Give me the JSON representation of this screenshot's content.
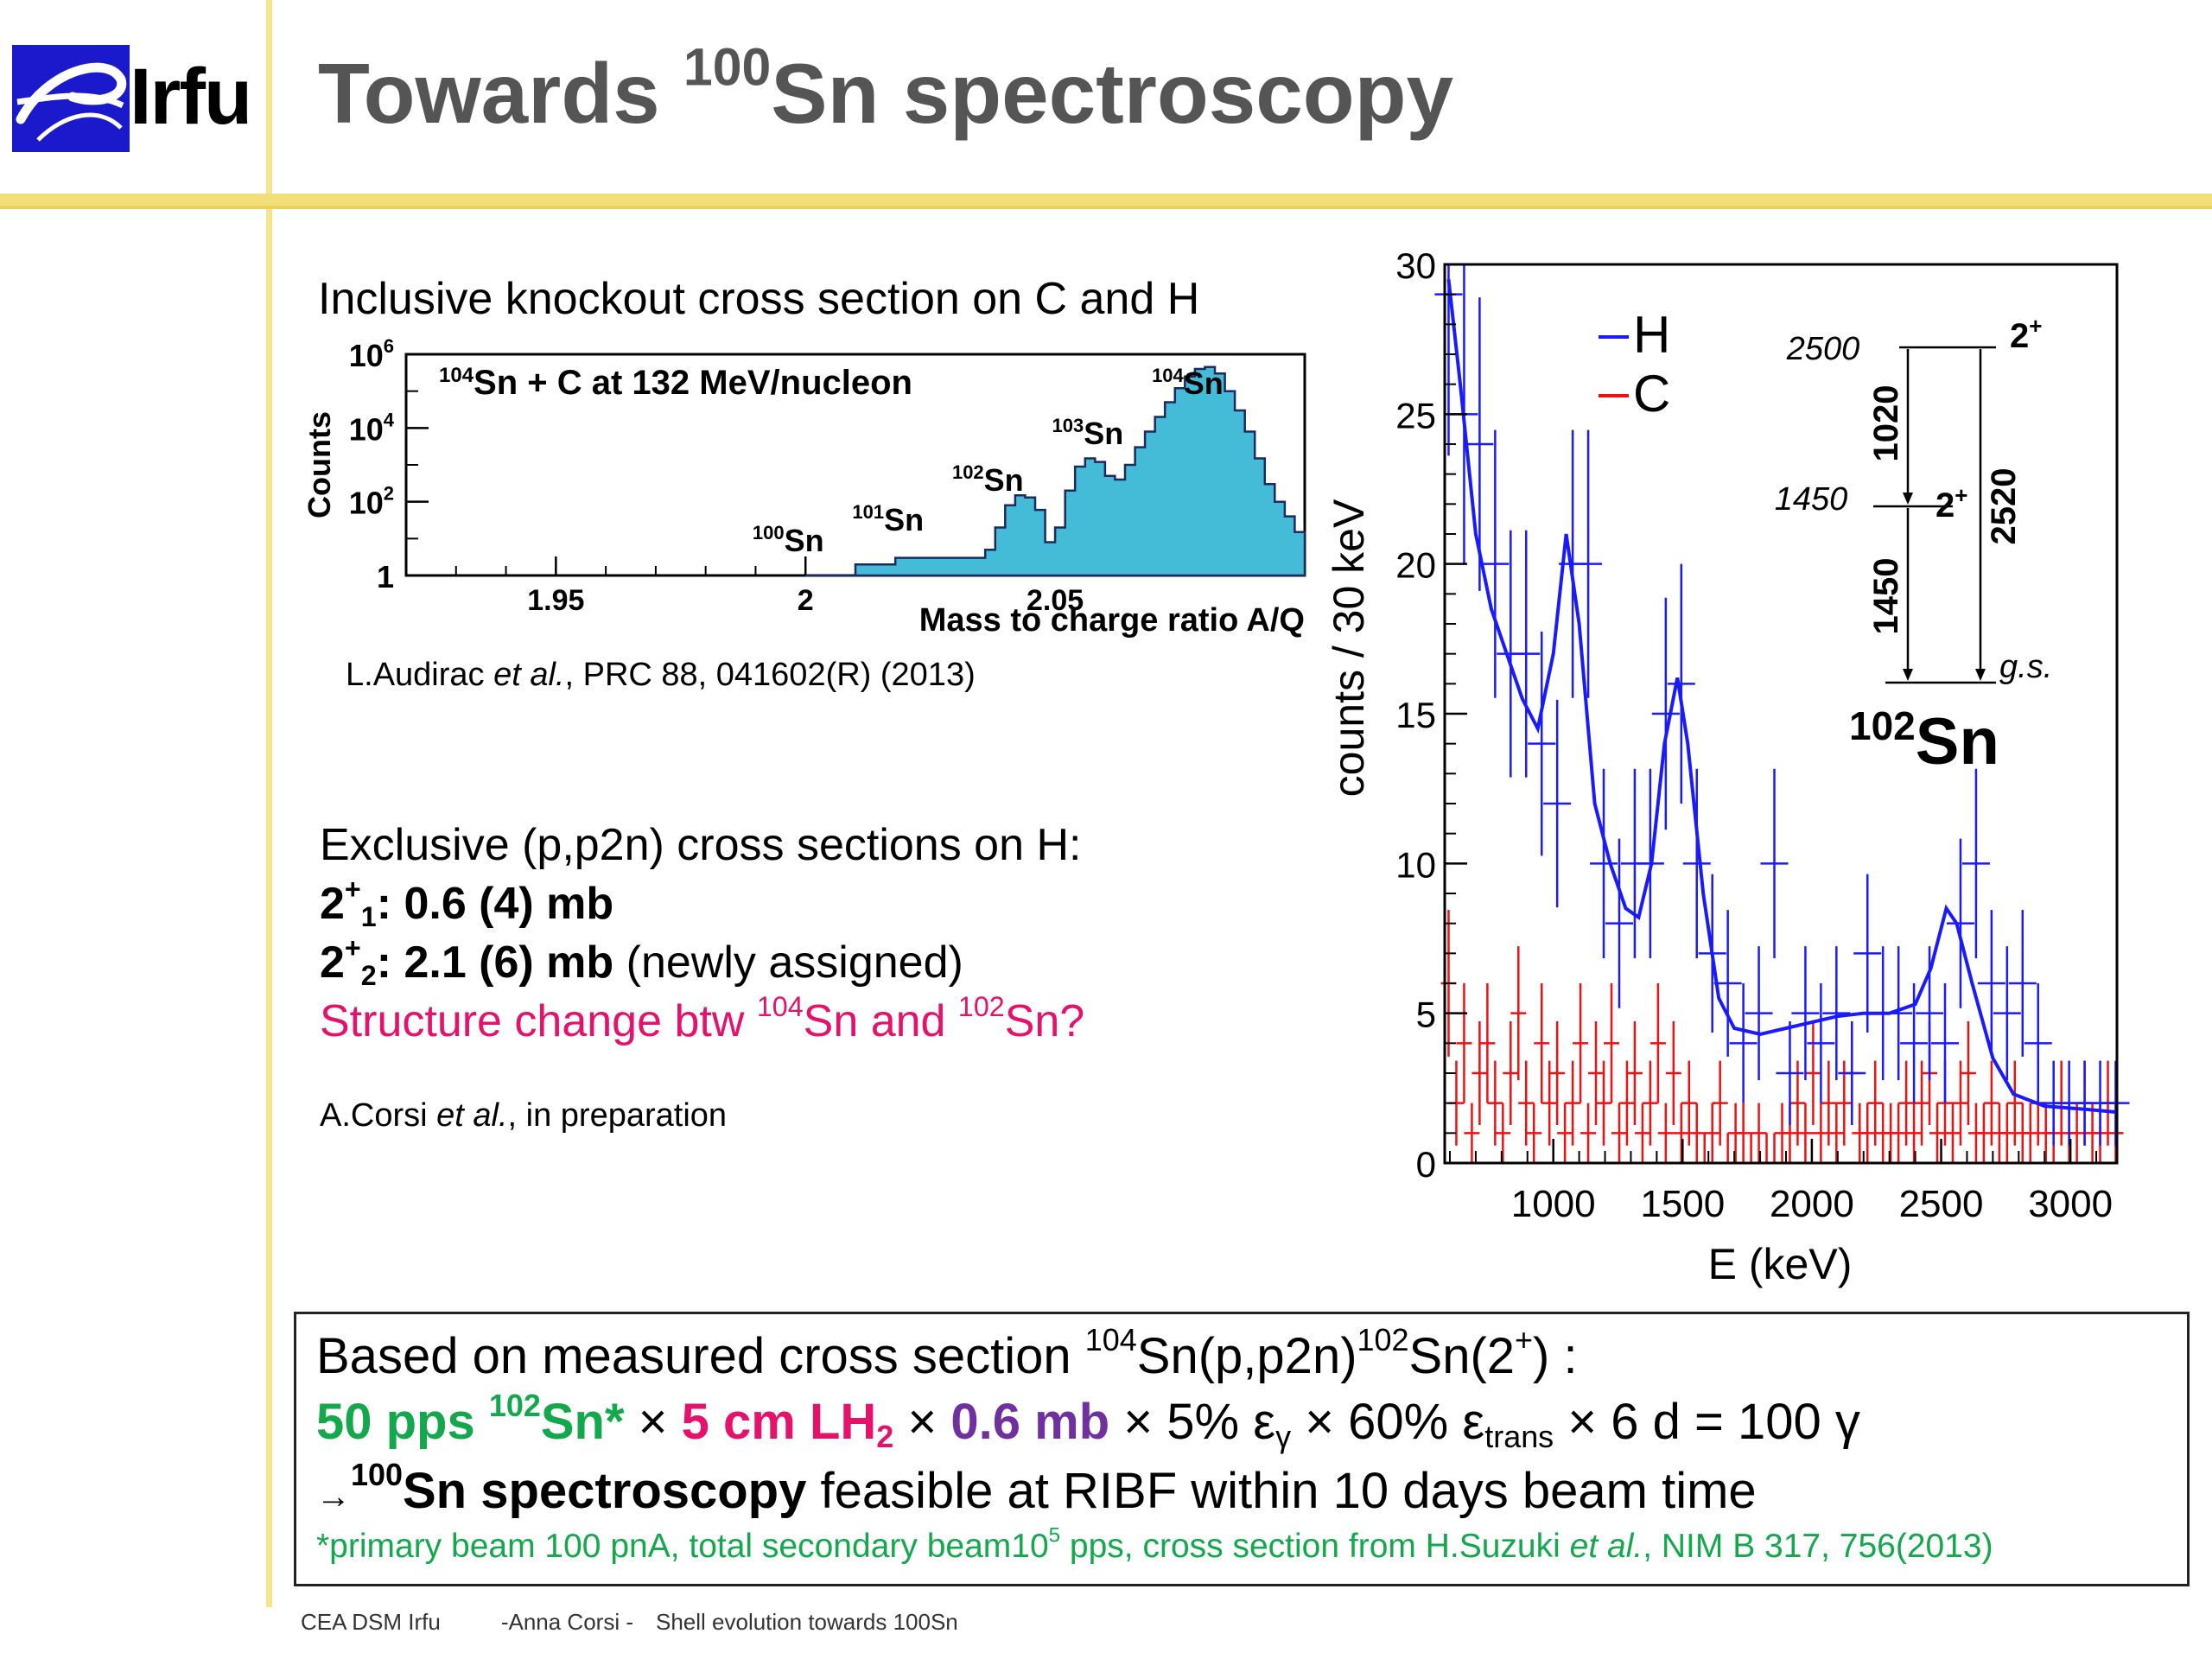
{
  "header": {
    "logo_text": "Irfu",
    "title_pre": "Towards ",
    "title_sup": "100",
    "title_post": "Sn spectroscopy"
  },
  "inclusive": {
    "heading": "Inclusive knockout cross section on C and H",
    "citation_author": "L.Audirac ",
    "citation_etal": "et al.",
    "citation_rest": ", PRC 88, 041602(R) (2013)"
  },
  "exclusive": {
    "heading": "Exclusive (p,p2n) cross sections on H:",
    "line1_a": "2",
    "line1_sup": "+",
    "line1_sub": "1",
    "line1_val": ": 0.6 (4) mb",
    "line2_a": "2",
    "line2_sup": "+",
    "line2_sub": "2",
    "line2_val": ": 2.1 (6) mb",
    "line2_note": " (newly assigned)",
    "question_a": "Structure change btw ",
    "question_sup1": "104",
    "question_b": "Sn and ",
    "question_sup2": "102",
    "question_c": "Sn?",
    "citation_author": "A.Corsi ",
    "citation_etal": "et al.",
    "citation_rest": ", in preparation"
  },
  "summary": {
    "line1_a": "Based on measured cross section ",
    "line1_sup1": "104",
    "line1_b": "Sn(p,p2n)",
    "line1_sup2": "102",
    "line1_c": "Sn(2",
    "line1_sup3": "+",
    "line1_d": ") :",
    "rate_a": "50 pps ",
    "rate_sup": "102",
    "rate_b": "Sn*",
    "times": " × ",
    "target_a": "5 cm LH",
    "target_sub": "2",
    "xsec": "0.6 mb",
    "eff_a": "5% ε",
    "eff_sub": "γ",
    "trans_a": "60% ε",
    "trans_sub": "trans",
    "result": "6 d = 100 γ",
    "line3_arrow": "→",
    "line3_sup": "100",
    "line3_bold": "Sn spectroscopy",
    "line3_rest": " feasible at RIBF within 10 days beam time",
    "note_a": "*primary beam 100 pnA, total  secondary beam10",
    "note_sup": "5",
    "note_b": " pps, cross section from H.Suzuki ",
    "note_etal": "et al.",
    "note_c": ", NIM B 317, 756(2013)"
  },
  "footer": {
    "org": "CEA DSM Irfu",
    "author": "-Anna Corsi -",
    "talk": "Shell evolution towards 100Sn"
  },
  "colors": {
    "accent_yellow": "#f2df7a",
    "title_gray": "#555555",
    "hist_fill": "#44bcd8",
    "series_H": "#1a1aff",
    "series_C": "#ee1111",
    "pink": "#e6116b",
    "green": "#13a84c",
    "purple": "#7030a0"
  },
  "chart_data": [
    {
      "type": "area",
      "title": "",
      "inside_label": {
        "pre": "",
        "sup": "104",
        "post": "Sn + C at 132 MeV/nucleon"
      },
      "xlabel": "Mass to charge ratio A/Q",
      "ylabel": "Counts",
      "xlim": [
        1.92,
        2.1
      ],
      "ylim": [
        1,
        1000000
      ],
      "yscale": "log",
      "x_ticks": [
        "1.95",
        "2",
        "2.05"
      ],
      "y_ticks": [
        {
          "base": "1",
          "exp": ""
        },
        {
          "base": "10",
          "exp": "2"
        },
        {
          "base": "10",
          "exp": "4"
        },
        {
          "base": "10",
          "exp": "6"
        }
      ],
      "peak_labels": [
        {
          "sup": "100",
          "text": "Sn",
          "x": 2.0
        },
        {
          "sup": "101",
          "text": "Sn",
          "x": 2.02
        },
        {
          "sup": "102",
          "text": "Sn",
          "x": 2.04
        },
        {
          "sup": "103",
          "text": "Sn",
          "x": 2.06
        },
        {
          "sup": "104",
          "text": "Sn",
          "x": 2.08
        }
      ],
      "x": [
        2.0,
        2.01,
        2.018,
        2.022,
        2.026,
        2.03,
        2.034,
        2.036,
        2.038,
        2.04,
        2.042,
        2.044,
        2.046,
        2.048,
        2.05,
        2.052,
        2.054,
        2.056,
        2.058,
        2.06,
        2.062,
        2.064,
        2.066,
        2.068,
        2.07,
        2.072,
        2.074,
        2.076,
        2.078,
        2.08,
        2.082,
        2.084,
        2.086,
        2.088,
        2.09,
        2.092,
        2.094,
        2.096,
        2.098,
        2.1
      ],
      "y": [
        1,
        2,
        3,
        3,
        3,
        3,
        3,
        5,
        20,
        80,
        150,
        130,
        60,
        8,
        20,
        200,
        900,
        1500,
        1200,
        500,
        400,
        1000,
        3000,
        8000,
        20000,
        50000,
        120000,
        250000,
        400000,
        450000,
        300000,
        100000,
        30000,
        8000,
        1500,
        300,
        100,
        40,
        15,
        8
      ]
    },
    {
      "type": "scatter",
      "title": "",
      "xlabel": "E (keV)",
      "ylabel": "counts / 30 keV",
      "xlim": [
        580,
        3180
      ],
      "ylim": [
        0,
        30
      ],
      "x_ticks": [
        1000,
        1500,
        2000,
        2500,
        3000
      ],
      "y_ticks": [
        0,
        5,
        10,
        15,
        20,
        25,
        30
      ],
      "legend": {
        "placement": "top-center",
        "entries": [
          "H",
          "C"
        ]
      },
      "series": [
        {
          "name": "H",
          "x": [
            595,
            655,
            715,
            775,
            835,
            895,
            955,
            1015,
            1075,
            1135,
            1195,
            1255,
            1315,
            1375,
            1435,
            1495,
            1555,
            1615,
            1675,
            1735,
            1795,
            1855,
            1915,
            1975,
            2035,
            2095,
            2155,
            2215,
            2275,
            2335,
            2395,
            2455,
            2515,
            2575,
            2635,
            2695,
            2755,
            2815,
            2875,
            2935,
            2995,
            3055,
            3115,
            3175
          ],
          "y": [
            29,
            25,
            24,
            20,
            17,
            17,
            14,
            12,
            20,
            20,
            10,
            8,
            10,
            10,
            15,
            16,
            10,
            7,
            6,
            4,
            5,
            10,
            3,
            5,
            4,
            5,
            3,
            7,
            5,
            5,
            4,
            5,
            4,
            8,
            10,
            6,
            5,
            6,
            4,
            2,
            2,
            2,
            2,
            2
          ],
          "fit": [
            [
              595,
              29.5
            ],
            [
              640,
              26
            ],
            [
              700,
              21
            ],
            [
              760,
              18.5
            ],
            [
              820,
              17
            ],
            [
              880,
              15.5
            ],
            [
              940,
              14.5
            ],
            [
              1000,
              17
            ],
            [
              1050,
              21
            ],
            [
              1100,
              18
            ],
            [
              1160,
              12
            ],
            [
              1220,
              10
            ],
            [
              1280,
              8.5
            ],
            [
              1330,
              8.2
            ],
            [
              1380,
              10
            ],
            [
              1430,
              14
            ],
            [
              1480,
              16.2
            ],
            [
              1520,
              14
            ],
            [
              1580,
              9
            ],
            [
              1640,
              5.5
            ],
            [
              1700,
              4.5
            ],
            [
              1800,
              4.3
            ],
            [
              1900,
              4.5
            ],
            [
              2000,
              4.7
            ],
            [
              2100,
              4.9
            ],
            [
              2200,
              5.0
            ],
            [
              2300,
              5.0
            ],
            [
              2400,
              5.3
            ],
            [
              2460,
              6.5
            ],
            [
              2520,
              8.5
            ],
            [
              2560,
              8.0
            ],
            [
              2620,
              6
            ],
            [
              2700,
              3.5
            ],
            [
              2780,
              2.3
            ],
            [
              2900,
              1.9
            ],
            [
              3050,
              1.8
            ],
            [
              3180,
              1.7
            ]
          ]
        },
        {
          "name": "C",
          "x": [
            595,
            625,
            655,
            685,
            715,
            745,
            775,
            805,
            835,
            865,
            895,
            925,
            955,
            985,
            1015,
            1045,
            1075,
            1105,
            1135,
            1165,
            1195,
            1225,
            1255,
            1285,
            1315,
            1345,
            1375,
            1405,
            1435,
            1465,
            1495,
            1525,
            1555,
            1585,
            1615,
            1645,
            1675,
            1705,
            1735,
            1765,
            1795,
            1825,
            1855,
            1885,
            1915,
            1945,
            1975,
            2005,
            2035,
            2065,
            2095,
            2125,
            2155,
            2185,
            2215,
            2245,
            2275,
            2305,
            2335,
            2365,
            2395,
            2425,
            2455,
            2485,
            2515,
            2545,
            2575,
            2605,
            2635,
            2665,
            2695,
            2725,
            2755,
            2785,
            2815,
            2845,
            2875,
            2905,
            2935,
            2965,
            2995,
            3025,
            3055,
            3085,
            3115,
            3145,
            3175
          ],
          "y": [
            6,
            2,
            4,
            1,
            3,
            4,
            2,
            1,
            3,
            5,
            2,
            1,
            4,
            2,
            3,
            1,
            2,
            4,
            1,
            3,
            2,
            4,
            1,
            2,
            3,
            1,
            2,
            4,
            1,
            3,
            1,
            2,
            1,
            0,
            1,
            2,
            0,
            1,
            1,
            0,
            1,
            0,
            0,
            1,
            1,
            2,
            1,
            3,
            1,
            2,
            1,
            2,
            3,
            1,
            1,
            2,
            1,
            1,
            1,
            2,
            1,
            2,
            3,
            1,
            2,
            1,
            2,
            3,
            1,
            1,
            2,
            1,
            1,
            2,
            1,
            1,
            2,
            1,
            1,
            2,
            1,
            1,
            2,
            1,
            1,
            2,
            1
          ]
        }
      ],
      "level_scheme": {
        "nucleus": {
          "sup": "102",
          "text": "Sn"
        },
        "levels": [
          {
            "energy_label": "2500",
            "spin_base": "2",
            "spin_sup": "+"
          },
          {
            "energy_label": "1450",
            "spin_base": "2",
            "spin_sup": "+"
          },
          {
            "energy_label": "",
            "spin_base": "g.s.",
            "spin_sup": ""
          }
        ],
        "transitions": [
          "1020",
          "1450",
          "2520"
        ]
      }
    }
  ]
}
